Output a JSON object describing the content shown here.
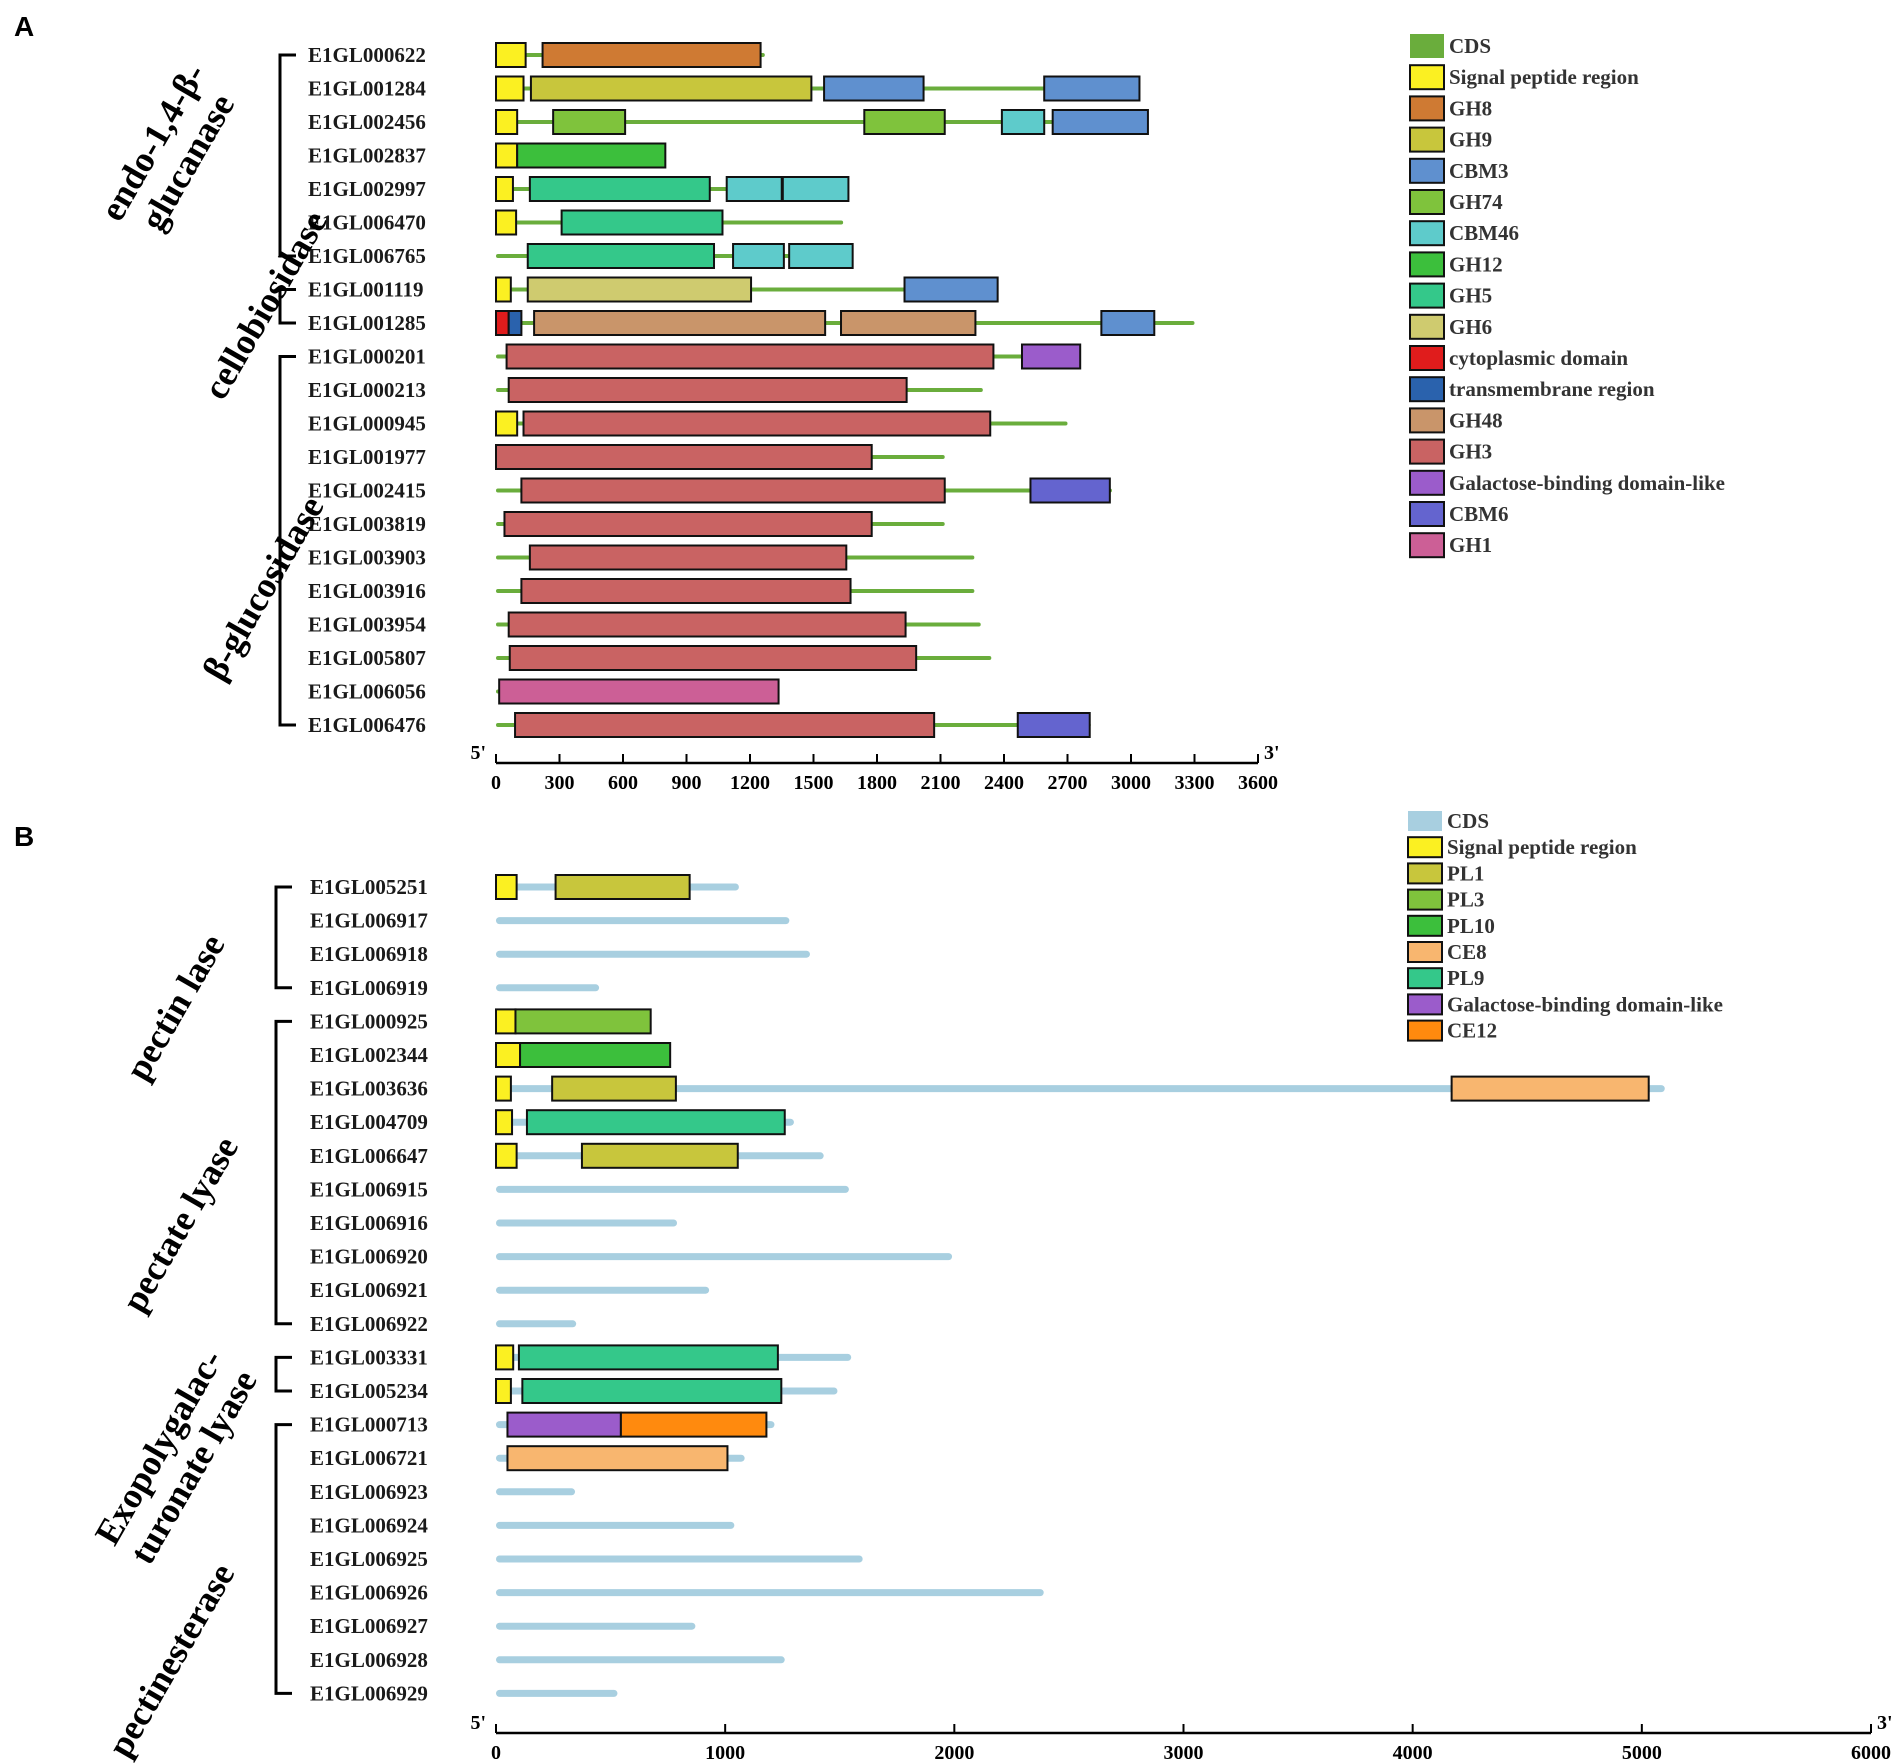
{
  "panels": [
    {
      "letter": "A",
      "five_prime": "5'",
      "three_prime": "3'",
      "axis": {
        "min": 0,
        "max": 3600,
        "ticks": [
          0,
          300,
          600,
          900,
          1200,
          1500,
          1800,
          2100,
          2400,
          2700,
          3000,
          3300,
          3600
        ]
      },
      "legend": [
        {
          "label": "CDS",
          "color": "#6aad3c"
        },
        {
          "label": "Signal peptide region",
          "color": "#fbf022"
        },
        {
          "label": "GH8",
          "color": "#cf7a33"
        },
        {
          "label": "GH9",
          "color": "#c8c63c"
        },
        {
          "label": "CBM3",
          "color": "#5f90cf"
        },
        {
          "label": "GH74",
          "color": "#7fc33c"
        },
        {
          "label": "CBM46",
          "color": "#5ecbcb"
        },
        {
          "label": "GH12",
          "color": "#3cbf3c"
        },
        {
          "label": "GH5",
          "color": "#34c88a"
        },
        {
          "label": "GH6",
          "color": "#cfcb6f"
        },
        {
          "label": "cytoplasmic domain",
          "color": "#e01c1c"
        },
        {
          "label": "transmembrane region",
          "color": "#2a62ad"
        },
        {
          "label": "GH48",
          "color": "#c9956a"
        },
        {
          "label": "GH3",
          "color": "#c96363"
        },
        {
          "label": "Galactose-binding domain-like",
          "color": "#9b5ccb"
        },
        {
          "label": "CBM6",
          "color": "#6464cf"
        },
        {
          "label": "GH1",
          "color": "#cc5f96"
        }
      ],
      "groups": [
        {
          "label": [
            "endo-1,4-β-",
            "glucanase"
          ],
          "first": 0,
          "last": 6
        },
        {
          "label": [
            "cellobiosidase"
          ],
          "first": 7,
          "last": 8
        },
        {
          "label": [
            "β-glucosidase"
          ],
          "first": 9,
          "last": 20
        }
      ],
      "genes": [
        {
          "id": "E1GL000622",
          "length": 1270,
          "domains": [
            [
              0,
              140,
              "Signal peptide region"
            ],
            [
              220,
              1250,
              "GH8"
            ]
          ]
        },
        {
          "id": "E1GL001284",
          "length": 3040,
          "domains": [
            [
              0,
              130,
              "Signal peptide region"
            ],
            [
              165,
              1490,
              "GH9"
            ],
            [
              1550,
              2020,
              "CBM3"
            ],
            [
              2590,
              3040,
              "CBM3"
            ]
          ]
        },
        {
          "id": "E1GL002456",
          "length": 3080,
          "domains": [
            [
              0,
              100,
              "Signal peptide region"
            ],
            [
              270,
              610,
              "GH74"
            ],
            [
              1740,
              2120,
              "GH74"
            ],
            [
              2390,
              2590,
              "CBM46"
            ],
            [
              2630,
              3080,
              "CBM3"
            ]
          ]
        },
        {
          "id": "E1GL002837",
          "length": 800,
          "domains": [
            [
              0,
              100,
              "Signal peptide region"
            ],
            [
              100,
              800,
              "GH12"
            ]
          ]
        },
        {
          "id": "E1GL002997",
          "length": 1665,
          "domains": [
            [
              0,
              80,
              "Signal peptide region"
            ],
            [
              160,
              1010,
              "GH5"
            ],
            [
              1090,
              1350,
              "CBM46"
            ],
            [
              1355,
              1665,
              "CBM46"
            ]
          ]
        },
        {
          "id": "E1GL006470",
          "length": 1640,
          "domains": [
            [
              0,
              95,
              "Signal peptide region"
            ],
            [
              310,
              1070,
              "GH5"
            ]
          ]
        },
        {
          "id": "E1GL006765",
          "length": 1685,
          "domains": [
            [
              150,
              1030,
              "GH5"
            ],
            [
              1120,
              1360,
              "CBM46"
            ],
            [
              1385,
              1685,
              "CBM46"
            ]
          ]
        },
        {
          "id": "E1GL001119",
          "length": 2370,
          "domains": [
            [
              0,
              70,
              "Signal peptide region"
            ],
            [
              150,
              1205,
              "GH6"
            ],
            [
              1930,
              2370,
              "CBM3"
            ]
          ]
        },
        {
          "id": "E1GL001285",
          "length": 3300,
          "domains": [
            [
              0,
              60,
              "cytoplasmic domain"
            ],
            [
              60,
              120,
              "transmembrane region"
            ],
            [
              180,
              1555,
              "GH48"
            ],
            [
              1630,
              2265,
              "GH48"
            ],
            [
              2860,
              3110,
              "CBM3"
            ]
          ]
        },
        {
          "id": "E1GL000201",
          "length": 2760,
          "domains": [
            [
              50,
              2350,
              "GH3"
            ],
            [
              2485,
              2760,
              "Galactose-binding domain-like"
            ]
          ]
        },
        {
          "id": "E1GL000213",
          "length": 2300,
          "domains": [
            [
              60,
              1940,
              "GH3"
            ]
          ]
        },
        {
          "id": "E1GL000945",
          "length": 2700,
          "domains": [
            [
              0,
              100,
              "Signal peptide region"
            ],
            [
              130,
              2335,
              "GH3"
            ]
          ]
        },
        {
          "id": "E1GL001977",
          "length": 2120,
          "domains": [
            [
              0,
              1775,
              "GH3"
            ]
          ]
        },
        {
          "id": "E1GL002415",
          "length": 2910,
          "domains": [
            [
              120,
              2120,
              "GH3"
            ],
            [
              2525,
              2900,
              "CBM6"
            ]
          ]
        },
        {
          "id": "E1GL003819",
          "length": 2120,
          "domains": [
            [
              40,
              1775,
              "GH3"
            ]
          ]
        },
        {
          "id": "E1GL003903",
          "length": 2260,
          "domains": [
            [
              160,
              1655,
              "GH3"
            ]
          ]
        },
        {
          "id": "E1GL003916",
          "length": 2260,
          "domains": [
            [
              120,
              1675,
              "GH3"
            ]
          ]
        },
        {
          "id": "E1GL003954",
          "length": 2290,
          "domains": [
            [
              60,
              1935,
              "GH3"
            ]
          ]
        },
        {
          "id": "E1GL005807",
          "length": 2340,
          "domains": [
            [
              65,
              1985,
              "GH3"
            ]
          ]
        },
        {
          "id": "E1GL006056",
          "length": 1335,
          "domains": [
            [
              15,
              1335,
              "GH1"
            ]
          ]
        },
        {
          "id": "E1GL006476",
          "length": 2810,
          "domains": [
            [
              90,
              2070,
              "GH3"
            ],
            [
              2465,
              2805,
              "CBM6"
            ]
          ]
        }
      ]
    },
    {
      "letter": "B",
      "five_prime": "5'",
      "three_prime": "3'",
      "axis": {
        "min": 0,
        "max": 6000,
        "ticks": [
          0,
          1000,
          2000,
          3000,
          4000,
          5000,
          6000
        ]
      },
      "legend": [
        {
          "label": "CDS",
          "color": "#a8cfe0"
        },
        {
          "label": "Signal peptide region",
          "color": "#fbf022"
        },
        {
          "label": "PL1",
          "color": "#c8c63c"
        },
        {
          "label": "PL3",
          "color": "#7fc33c"
        },
        {
          "label": "PL10",
          "color": "#3cbf3c"
        },
        {
          "label": "CE8",
          "color": "#f8b66f"
        },
        {
          "label": "PL9",
          "color": "#34c88a"
        },
        {
          "label": "Galactose-binding domain-like",
          "color": "#9b5ccb"
        },
        {
          "label": "CE12",
          "color": "#ff8a0e"
        }
      ],
      "groups": [
        {
          "label": [
            "pectin lase"
          ],
          "first": 0,
          "last": 3
        },
        {
          "label": [
            "pectate lyase"
          ],
          "first": 4,
          "last": 13
        },
        {
          "label": [
            "Exopolygalac-",
            "turonate lyase"
          ],
          "first": 14,
          "last": 15
        },
        {
          "label": [
            "pectinesterase"
          ],
          "first": 16,
          "last": 24
        }
      ],
      "genes": [
        {
          "id": "E1GL005251",
          "length": 1060,
          "domains": [
            [
              0,
              90,
              "Signal peptide region"
            ],
            [
              260,
              845,
              "PL1"
            ]
          ]
        },
        {
          "id": "E1GL006917",
          "length": 1280,
          "domains": []
        },
        {
          "id": "E1GL006918",
          "length": 1370,
          "domains": []
        },
        {
          "id": "E1GL006919",
          "length": 450,
          "domains": []
        },
        {
          "id": "E1GL000925",
          "length": 675,
          "domains": [
            [
              0,
              85,
              "Signal peptide region"
            ],
            [
              85,
              675,
              "PL3"
            ]
          ]
        },
        {
          "id": "E1GL002344",
          "length": 760,
          "domains": [
            [
              0,
              105,
              "Signal peptide region"
            ],
            [
              105,
              760,
              "PL10"
            ]
          ]
        },
        {
          "id": "E1GL003636",
          "length": 5100,
          "domains": [
            [
              0,
              65,
              "Signal peptide region"
            ],
            [
              245,
              785,
              "PL1"
            ],
            [
              4170,
              5030,
              "CE8"
            ]
          ]
        },
        {
          "id": "E1GL004709",
          "length": 1300,
          "domains": [
            [
              0,
              70,
              "Signal peptide region"
            ],
            [
              135,
              1260,
              "PL9"
            ]
          ]
        },
        {
          "id": "E1GL006647",
          "length": 1430,
          "domains": [
            [
              0,
              90,
              "Signal peptide region"
            ],
            [
              375,
              1055,
              "PL1"
            ]
          ]
        },
        {
          "id": "E1GL006915",
          "length": 1540,
          "domains": []
        },
        {
          "id": "E1GL006916",
          "length": 790,
          "domains": []
        },
        {
          "id": "E1GL006920",
          "length": 1990,
          "domains": []
        },
        {
          "id": "E1GL006921",
          "length": 930,
          "domains": []
        },
        {
          "id": "E1GL006922",
          "length": 350,
          "domains": []
        },
        {
          "id": "E1GL003331",
          "length": 1550,
          "domains": [
            [
              0,
              75,
              "Signal peptide region"
            ],
            [
              100,
              1230,
              "PL9"
            ]
          ]
        },
        {
          "id": "E1GL005234",
          "length": 1490,
          "domains": [
            [
              0,
              65,
              "Signal peptide region"
            ],
            [
              115,
              1245,
              "PL9"
            ]
          ]
        },
        {
          "id": "E1GL000713",
          "length": 1215,
          "domains": [
            [
              50,
              545,
              "Galactose-binding domain-like"
            ],
            [
              545,
              1180,
              "CE12"
            ]
          ]
        },
        {
          "id": "E1GL006721",
          "length": 1085,
          "domains": [
            [
              50,
              1010,
              "CE8"
            ]
          ]
        },
        {
          "id": "E1GL006923",
          "length": 345,
          "domains": []
        },
        {
          "id": "E1GL006924",
          "length": 1040,
          "domains": []
        },
        {
          "id": "E1GL006925",
          "length": 1600,
          "domains": []
        },
        {
          "id": "E1GL006926",
          "length": 2390,
          "domains": []
        },
        {
          "id": "E1GL006927",
          "length": 870,
          "domains": []
        },
        {
          "id": "E1GL006928",
          "length": 1260,
          "domains": []
        },
        {
          "id": "E1GL006929",
          "length": 530,
          "domains": []
        }
      ]
    }
  ]
}
